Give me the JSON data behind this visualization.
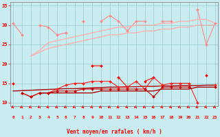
{
  "x": [
    0,
    1,
    2,
    3,
    4,
    5,
    6,
    7,
    8,
    9,
    10,
    11,
    12,
    13,
    14,
    15,
    16,
    17,
    18,
    19,
    20,
    21,
    22,
    23
  ],
  "series": [
    {
      "name": "line1_pink_markers",
      "color": "#FF8888",
      "lw": 0.8,
      "marker": "D",
      "markersize": 2.0,
      "y": [
        30.5,
        27.5,
        null,
        30.0,
        29.5,
        27.5,
        28.0,
        null,
        31.0,
        null,
        31.0,
        32.5,
        31.0,
        28.5,
        31.0,
        31.0,
        null,
        31.0,
        31.0,
        null,
        null,
        34.0,
        25.0,
        30.5
      ]
    },
    {
      "name": "line2_pink_upper_trend",
      "color": "#FFB0B0",
      "lw": 1.0,
      "marker": null,
      "markersize": 0,
      "y": [
        27.0,
        null,
        22.0,
        23.5,
        25.5,
        26.0,
        26.5,
        27.0,
        27.5,
        28.0,
        28.5,
        29.0,
        29.5,
        29.5,
        30.0,
        30.0,
        30.0,
        30.5,
        30.5,
        31.0,
        31.0,
        31.5,
        31.5,
        30.5
      ]
    },
    {
      "name": "line3_pink_lower_trend",
      "color": "#FFB0B0",
      "lw": 1.0,
      "marker": null,
      "markersize": 0,
      "y": [
        null,
        null,
        22.0,
        23.0,
        24.0,
        24.5,
        25.0,
        25.5,
        26.0,
        26.5,
        27.0,
        27.5,
        27.5,
        28.0,
        28.0,
        28.5,
        28.5,
        29.0,
        29.0,
        29.5,
        29.5,
        30.0,
        30.0,
        30.0
      ]
    },
    {
      "name": "line4_red_upper_markers",
      "color": "#FF0000",
      "lw": 0.8,
      "marker": "D",
      "markersize": 2.0,
      "y": [
        15.0,
        null,
        null,
        null,
        null,
        null,
        null,
        null,
        null,
        19.5,
        19.5,
        null,
        16.5,
        14.0,
        null,
        15.5,
        16.5,
        null,
        null,
        null,
        null,
        null,
        17.0,
        null
      ]
    },
    {
      "name": "line5_dark_trend_full",
      "color": "#AA0000",
      "lw": 1.0,
      "marker": null,
      "markersize": 0,
      "y": [
        13.0,
        13.1,
        13.2,
        13.3,
        13.4,
        13.5,
        13.6,
        13.6,
        13.7,
        13.8,
        13.9,
        14.0,
        14.0,
        14.1,
        14.1,
        14.2,
        14.2,
        14.3,
        14.3,
        14.4,
        14.4,
        14.4,
        14.5,
        14.5
      ]
    },
    {
      "name": "line6_red_mid_markers",
      "color": "#FF2020",
      "lw": 0.8,
      "marker": "D",
      "markersize": 2.0,
      "y": [
        null,
        12.5,
        11.5,
        12.5,
        12.5,
        13.5,
        14.5,
        15.0,
        15.0,
        15.5,
        15.5,
        15.5,
        14.0,
        14.0,
        15.5,
        13.5,
        16.5,
        14.5,
        15.0,
        15.0,
        15.0,
        10.0,
        null,
        14.5
      ]
    },
    {
      "name": "line7_dark_lower_markers",
      "color": "#CC0000",
      "lw": 0.8,
      "marker": "D",
      "markersize": 2.0,
      "y": [
        null,
        12.5,
        11.5,
        12.5,
        12.5,
        13.0,
        13.0,
        13.0,
        13.5,
        13.5,
        13.5,
        13.5,
        13.5,
        13.5,
        13.5,
        13.5,
        11.5,
        14.0,
        14.0,
        14.0,
        14.0,
        null,
        null,
        14.0
      ]
    },
    {
      "name": "line8_dark_base_trend",
      "color": "#AA0000",
      "lw": 1.0,
      "marker": null,
      "markersize": 0,
      "y": [
        null,
        null,
        null,
        12.5,
        12.5,
        12.5,
        12.5,
        12.5,
        12.5,
        12.5,
        13.0,
        13.0,
        13.0,
        13.0,
        13.0,
        13.0,
        13.0,
        13.5,
        13.5,
        13.5,
        13.5,
        14.0,
        14.0,
        14.0
      ]
    }
  ],
  "xlim": [
    -0.3,
    23.3
  ],
  "ylim": [
    9,
    36
  ],
  "yticks": [
    10,
    15,
    20,
    25,
    30,
    35
  ],
  "xticks": [
    0,
    1,
    2,
    3,
    4,
    5,
    6,
    7,
    8,
    9,
    10,
    11,
    12,
    13,
    14,
    15,
    16,
    17,
    18,
    19,
    20,
    21,
    22,
    23
  ],
  "xlabel": "Vent moyen/en rafales ( km/h )",
  "bg_color": "#C8ECF0",
  "grid_color": "#99CCCC",
  "tick_color": "#FF0000",
  "label_color": "#FF0000",
  "axis_color": "#888888"
}
